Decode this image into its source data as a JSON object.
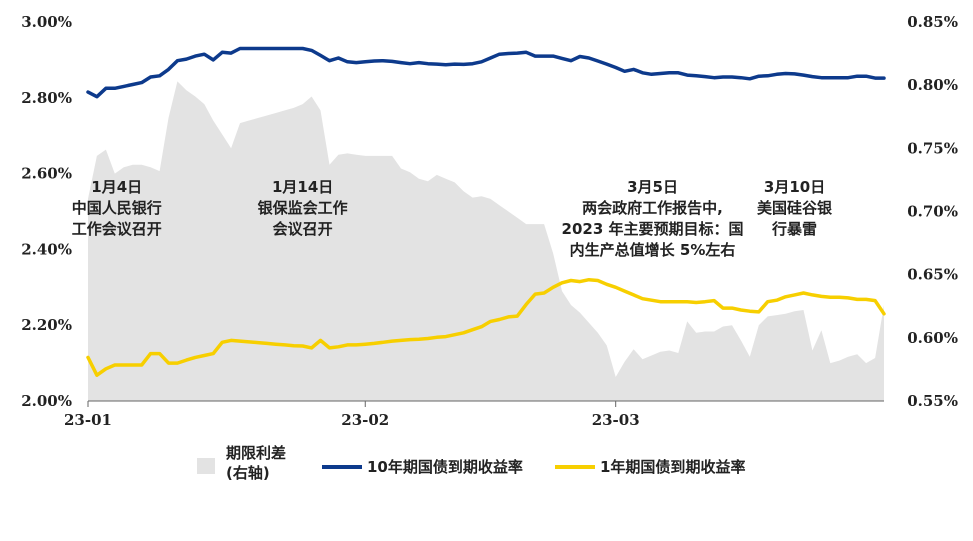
{
  "chart_data": {
    "type": "line",
    "x_ticks": [
      "23-01",
      "23-02",
      "23-03"
    ],
    "y_left": {
      "range": [
        2.0,
        3.0
      ],
      "ticks": [
        "2.00%",
        "2.20%",
        "2.40%",
        "2.60%",
        "2.80%",
        "3.00%"
      ]
    },
    "y_right": {
      "range": [
        0.55,
        0.85
      ],
      "ticks": [
        "0.55%",
        "0.60%",
        "0.65%",
        "0.70%",
        "0.75%",
        "0.80%",
        "0.85%"
      ]
    },
    "x_month_starts": [
      0,
      31,
      59
    ],
    "series": [
      {
        "name": "期限利差\n(右轴)",
        "axis": "right",
        "style": "area",
        "color": "#e3e3e3",
        "x": [
          0,
          1,
          2,
          3,
          4,
          5,
          6,
          7,
          8,
          9,
          10,
          11,
          12,
          13,
          14,
          15,
          16,
          17,
          18,
          19,
          20,
          21,
          22,
          23,
          24,
          25,
          26,
          27,
          28,
          29,
          30,
          31,
          32,
          33,
          34,
          35,
          36,
          37,
          38,
          39,
          40,
          41,
          42,
          43,
          44,
          45,
          46,
          47,
          48,
          49,
          50,
          51,
          52,
          53,
          54,
          55,
          56,
          57,
          58,
          59,
          60,
          61,
          62,
          63,
          64,
          65,
          66,
          67,
          68,
          69,
          70,
          71,
          72,
          73,
          74,
          75,
          76,
          77,
          78,
          79,
          80,
          81,
          82,
          83,
          84,
          85,
          86,
          87,
          88,
          89
        ],
        "values": [
          0.71,
          0.744,
          0.749,
          0.73,
          0.735,
          0.737,
          0.737,
          0.735,
          0.732,
          0.774,
          0.803,
          0.796,
          0.791,
          0.785,
          0.772,
          0.761,
          0.75,
          0.77,
          0.772,
          0.774,
          0.776,
          0.778,
          0.78,
          0.782,
          0.785,
          0.791,
          0.78,
          0.737,
          0.745,
          0.746,
          0.745,
          0.744,
          0.744,
          0.744,
          0.744,
          0.734,
          0.731,
          0.726,
          0.724,
          0.729,
          0.726,
          0.723,
          0.716,
          0.711,
          0.712,
          0.71,
          0.705,
          0.7,
          0.695,
          0.69,
          0.69,
          0.69,
          0.667,
          0.637,
          0.626,
          0.62,
          0.612,
          0.604,
          0.594,
          0.569,
          0.581,
          0.591,
          0.583,
          0.586,
          0.589,
          0.59,
          0.588,
          0.613,
          0.604,
          0.605,
          0.605,
          0.609,
          0.61,
          0.598,
          0.585,
          0.61,
          0.617,
          0.618,
          0.619,
          0.621,
          0.622,
          0.59,
          0.606,
          0.58,
          0.582,
          0.585,
          0.587,
          0.58,
          0.584,
          0.626
        ]
      },
      {
        "name": "10年期国债到期收益率",
        "axis": "left",
        "style": "line",
        "color": "#0d3a8c",
        "x": [
          0,
          1,
          2,
          3,
          4,
          5,
          6,
          7,
          8,
          9,
          10,
          11,
          12,
          13,
          14,
          15,
          16,
          17,
          18,
          19,
          20,
          21,
          22,
          23,
          24,
          25,
          26,
          27,
          28,
          29,
          30,
          31,
          32,
          33,
          34,
          35,
          36,
          37,
          38,
          39,
          40,
          41,
          42,
          43,
          44,
          45,
          46,
          47,
          48,
          49,
          50,
          51,
          52,
          53,
          54,
          55,
          56,
          57,
          58,
          59,
          60,
          61,
          62,
          63,
          64,
          65,
          66,
          67,
          68,
          69,
          70,
          71,
          72,
          73,
          74,
          75,
          76,
          77,
          78,
          79,
          80,
          81,
          82,
          83,
          84,
          85,
          86,
          87,
          88,
          89
        ],
        "values": [
          2.815,
          2.803,
          2.825,
          2.825,
          2.83,
          2.835,
          2.84,
          2.855,
          2.858,
          2.875,
          2.898,
          2.902,
          2.91,
          2.915,
          2.9,
          2.92,
          2.918,
          2.93,
          2.93,
          2.93,
          2.93,
          2.93,
          2.93,
          2.93,
          2.93,
          2.925,
          2.912,
          2.898,
          2.905,
          2.895,
          2.893,
          2.895,
          2.897,
          2.898,
          2.896,
          2.893,
          2.89,
          2.893,
          2.89,
          2.889,
          2.887,
          2.889,
          2.888,
          2.89,
          2.895,
          2.905,
          2.915,
          2.917,
          2.918,
          2.92,
          2.91,
          2.91,
          2.91,
          2.904,
          2.898,
          2.909,
          2.905,
          2.897,
          2.889,
          2.88,
          2.87,
          2.875,
          2.866,
          2.862,
          2.864,
          2.866,
          2.866,
          2.86,
          2.858,
          2.856,
          2.853,
          2.855,
          2.855,
          2.853,
          2.85,
          2.857,
          2.858,
          2.862,
          2.864,
          2.863,
          2.86,
          2.856,
          2.853,
          2.853,
          2.853,
          2.853,
          2.857,
          2.857,
          2.852,
          2.852
        ]
      },
      {
        "name": "1年期国债到期收益率",
        "axis": "left",
        "style": "line",
        "color": "#f7cf00",
        "x": [
          0,
          1,
          2,
          3,
          4,
          5,
          6,
          7,
          8,
          9,
          10,
          11,
          12,
          13,
          14,
          15,
          16,
          17,
          18,
          19,
          20,
          21,
          22,
          23,
          24,
          25,
          26,
          27,
          28,
          29,
          30,
          31,
          32,
          33,
          34,
          35,
          36,
          37,
          38,
          39,
          40,
          41,
          42,
          43,
          44,
          45,
          46,
          47,
          48,
          49,
          50,
          51,
          52,
          53,
          54,
          55,
          56,
          57,
          58,
          59,
          60,
          61,
          62,
          63,
          64,
          65,
          66,
          67,
          68,
          69,
          70,
          71,
          72,
          73,
          74,
          75,
          76,
          77,
          78,
          79,
          80,
          81,
          82,
          83,
          84,
          85,
          86,
          87,
          88,
          89
        ],
        "values": [
          2.115,
          2.068,
          2.085,
          2.095,
          2.095,
          2.095,
          2.095,
          2.125,
          2.125,
          2.1,
          2.1,
          2.108,
          2.115,
          2.12,
          2.125,
          2.155,
          2.16,
          2.158,
          2.156,
          2.154,
          2.152,
          2.15,
          2.148,
          2.146,
          2.145,
          2.14,
          2.16,
          2.14,
          2.143,
          2.148,
          2.148,
          2.15,
          2.152,
          2.155,
          2.158,
          2.16,
          2.162,
          2.163,
          2.165,
          2.168,
          2.17,
          2.175,
          2.18,
          2.188,
          2.196,
          2.21,
          2.215,
          2.222,
          2.224,
          2.255,
          2.282,
          2.285,
          2.3,
          2.312,
          2.318,
          2.315,
          2.32,
          2.318,
          2.308,
          2.3,
          2.29,
          2.28,
          2.27,
          2.266,
          2.262,
          2.262,
          2.262,
          2.262,
          2.26,
          2.262,
          2.265,
          2.245,
          2.245,
          2.24,
          2.237,
          2.235,
          2.262,
          2.266,
          2.275,
          2.28,
          2.285,
          2.28,
          2.276,
          2.274,
          2.274,
          2.272,
          2.268,
          2.268,
          2.265,
          2.23
        ]
      }
    ],
    "annotations": [
      {
        "x": 5,
        "lines": [
          "1月4日",
          "中国人民银行",
          "工作会议召开"
        ]
      },
      {
        "x": 24,
        "lines": [
          "1月14日",
          "银保监会工作",
          "会议召开"
        ]
      },
      {
        "x": 62,
        "lines": [
          "3月5日",
          "两会政府工作报告中,",
          "2023 年主要预期目标：国",
          "内生产总值增长 5%左右"
        ]
      },
      {
        "x": 79,
        "lines": [
          "3月10日",
          "美国硅谷银",
          "行暴雷"
        ]
      }
    ],
    "legend_position": "bottom"
  }
}
